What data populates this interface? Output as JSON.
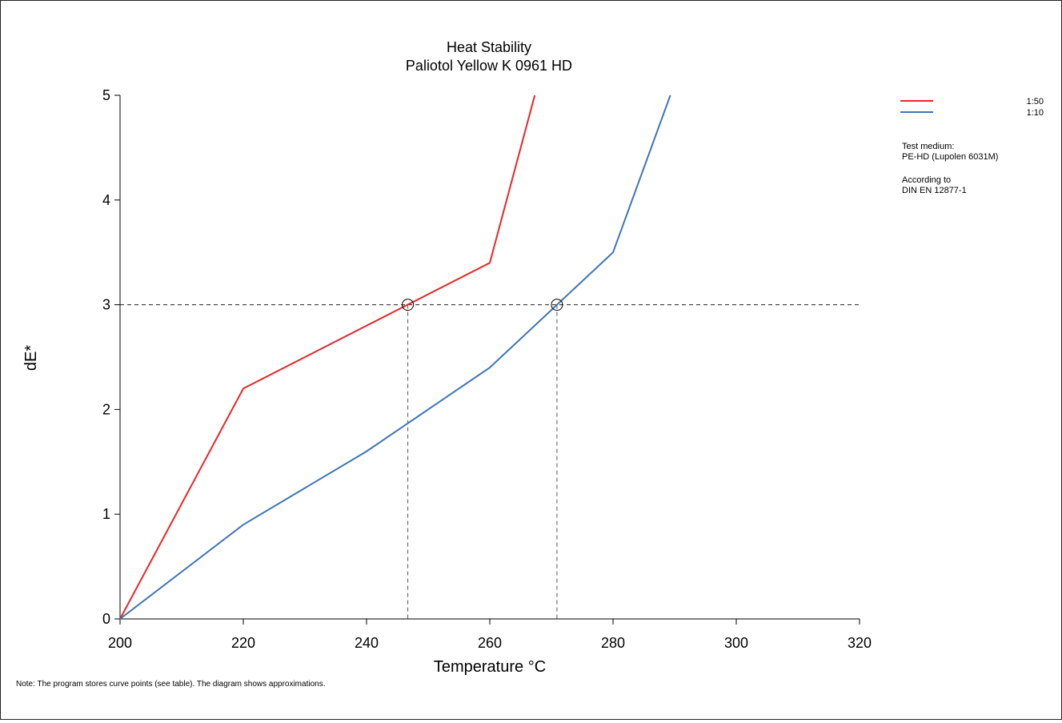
{
  "chart_data": {
    "type": "line",
    "title": "Heat Stability",
    "subtitle": "Paliotol Yellow K 0961 HD",
    "xlabel": "Temperature °C",
    "ylabel": "dE*",
    "xlim": [
      200,
      320
    ],
    "ylim": [
      0,
      5
    ],
    "xticks": [
      200,
      220,
      240,
      260,
      280,
      300,
      320
    ],
    "yticks": [
      0,
      1,
      2,
      3,
      4,
      5
    ],
    "grid": false,
    "legend_position": "top-right",
    "series": [
      {
        "name": "1:50",
        "color": "#e8262a",
        "x": [
          200,
          220,
          260,
          267.3
        ],
        "y": [
          0,
          2.2,
          3.4,
          5
        ]
      },
      {
        "name": "1:10",
        "color": "#3e74b6",
        "x": [
          200,
          220,
          240,
          260,
          280,
          289.3
        ],
        "y": [
          0,
          0.9,
          1.6,
          2.4,
          3.5,
          5
        ]
      }
    ],
    "reference_line": {
      "y": 3
    },
    "markers": [
      {
        "series": "1:50",
        "x": 246.7,
        "y": 3
      },
      {
        "series": "1:10",
        "x": 270.9,
        "y": 3
      }
    ]
  },
  "info": {
    "test_medium_label": "Test medium:",
    "test_medium_value": "PE-HD (Lupolen 6031M)",
    "according_label": "According to",
    "according_value": "DIN EN 12877-1"
  },
  "note": "Note: The program stores curve points (see table). The diagram shows approximations."
}
